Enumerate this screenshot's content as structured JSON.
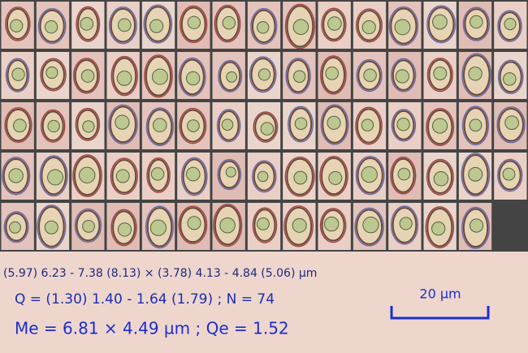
{
  "measurements": {
    "size_range": "(5.97) 6.23 - 7.38 (8.13) × (3.78) 4.13 - 4.84 (5.06) µm",
    "quotient": "Q = (1.30) 1.40 - 1.64 (1.79) ; N = 74",
    "means": "Me = 6.81 × 4.49 µm ; Qe = 1.52"
  },
  "scale_bar": {
    "label": "20 µm"
  }
}
